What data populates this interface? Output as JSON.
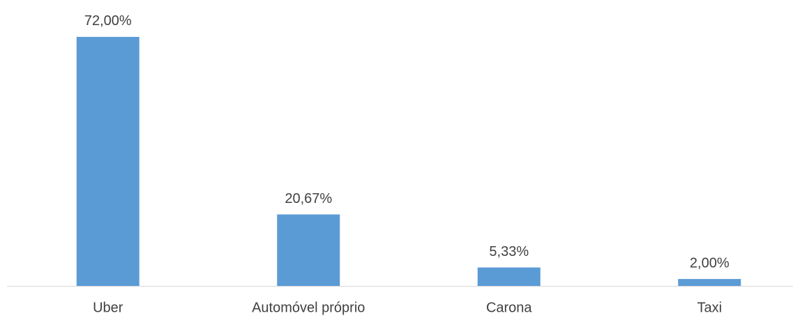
{
  "chart_data": {
    "type": "bar",
    "categories": [
      "Uber",
      "Automóvel próprio",
      "Carona",
      "Taxi"
    ],
    "values": [
      72,
      20.67,
      5.33,
      2
    ],
    "value_labels": [
      "72,00%",
      "20,67%",
      "5,33%",
      "2,00%"
    ],
    "color": "#5b9bd5"
  }
}
